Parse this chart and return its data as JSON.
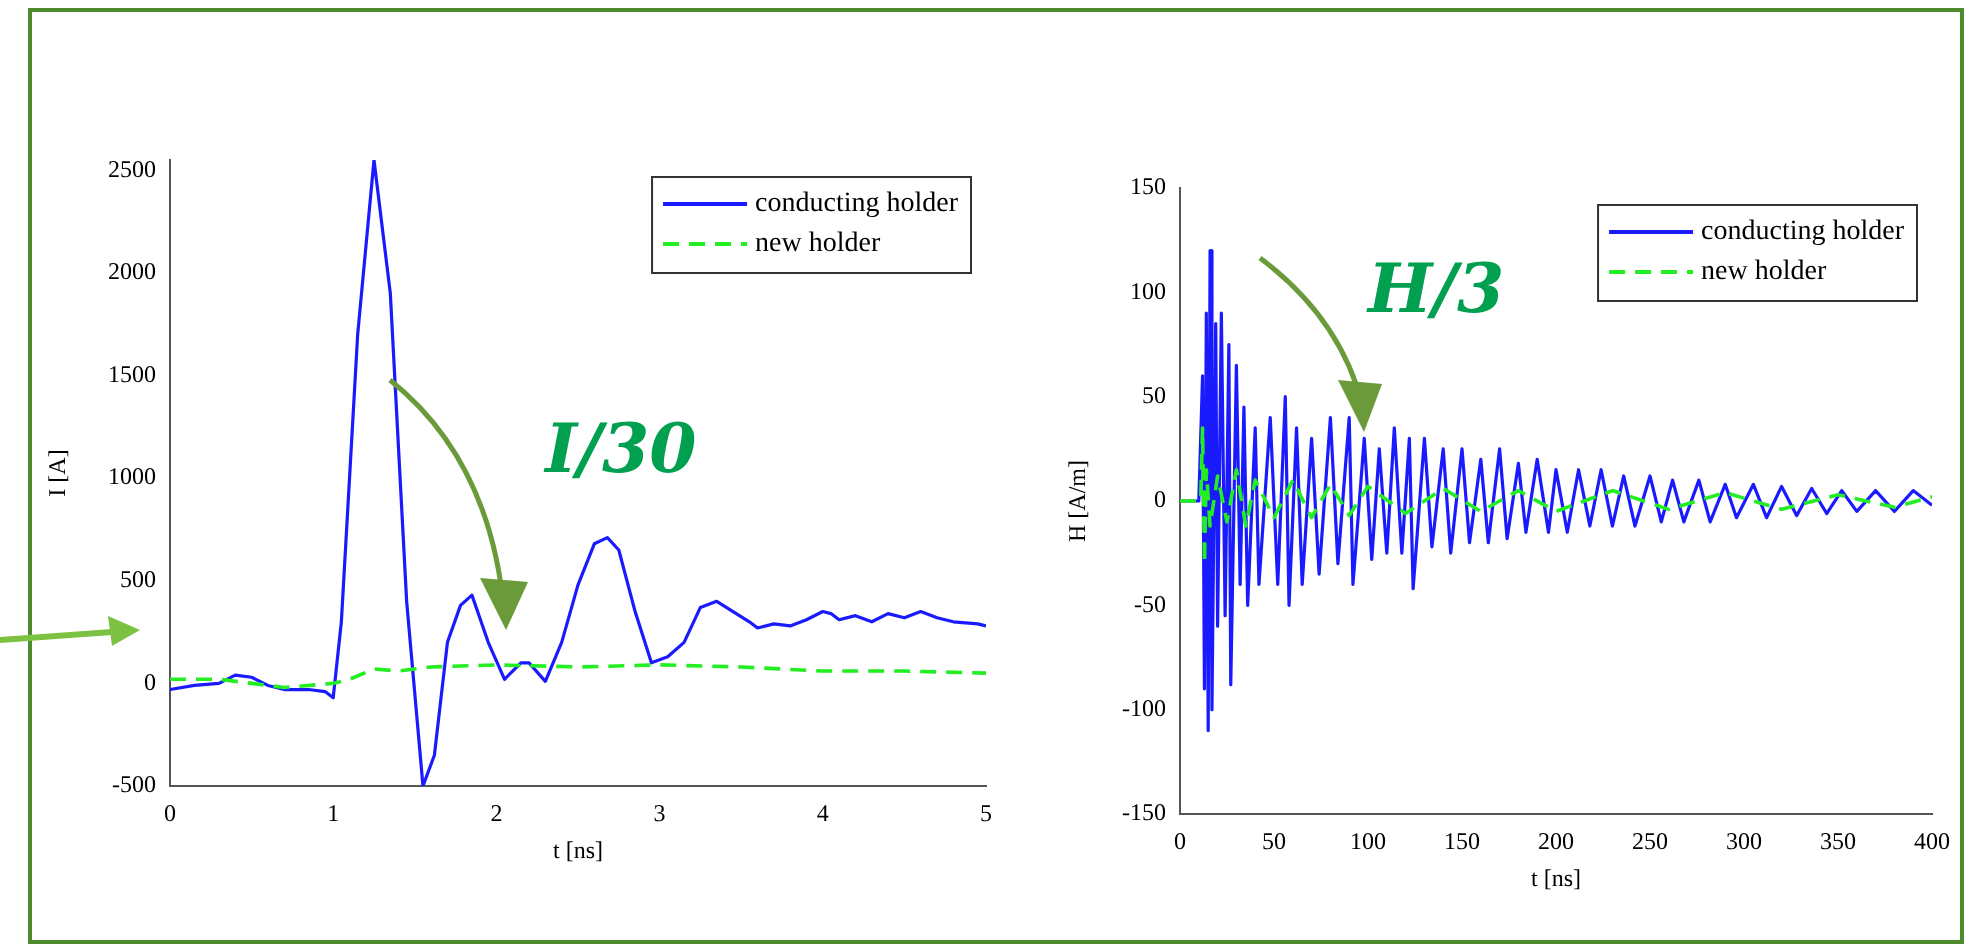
{
  "chart_data": [
    {
      "type": "line",
      "xlabel": "t [ns]",
      "ylabel": "I [A]",
      "xlim": [
        0,
        5
      ],
      "xticks": [
        0,
        1,
        2,
        3,
        4,
        5
      ],
      "ylim": [
        -500,
        2550
      ],
      "yticks": [
        -500,
        0,
        500,
        1000,
        1500,
        2000,
        2500
      ],
      "legend": "top right",
      "grid": false,
      "marker": "none",
      "annotations": [
        "I/30"
      ],
      "series": [
        {
          "name": "conducting holder",
          "color": "#1a1aff",
          "line_style": "solid",
          "x": [
            0,
            0.15,
            0.3,
            0.4,
            0.5,
            0.6,
            0.7,
            0.85,
            0.95,
            1.0,
            1.05,
            1.15,
            1.25,
            1.35,
            1.45,
            1.55,
            1.62,
            1.7,
            1.78,
            1.85,
            1.95,
            2.05,
            2.15,
            2.2,
            2.3,
            2.4,
            2.5,
            2.6,
            2.68,
            2.75,
            2.85,
            2.95,
            3.05,
            3.15,
            3.25,
            3.35,
            3.45,
            3.55,
            3.6,
            3.7,
            3.8,
            3.9,
            4.0,
            4.05,
            4.1,
            4.2,
            4.3,
            4.4,
            4.5,
            4.6,
            4.7,
            4.8,
            4.95,
            5
          ],
          "values": [
            -30,
            -10,
            0,
            40,
            30,
            -10,
            -30,
            -30,
            -40,
            -70,
            300,
            1700,
            2550,
            1900,
            400,
            -500,
            -350,
            200,
            380,
            430,
            200,
            20,
            100,
            100,
            10,
            200,
            480,
            680,
            710,
            650,
            350,
            100,
            130,
            200,
            370,
            400,
            350,
            300,
            270,
            290,
            280,
            310,
            350,
            340,
            310,
            330,
            300,
            340,
            320,
            350,
            320,
            300,
            290,
            280
          ]
        },
        {
          "name": "new holder",
          "color": "#22ee22",
          "line_style": "dashed",
          "x": [
            0,
            0.3,
            0.5,
            0.7,
            1.0,
            1.1,
            1.25,
            1.4,
            1.6,
            2,
            2.5,
            3,
            3.5,
            4,
            4.5,
            5
          ],
          "values": [
            20,
            20,
            0,
            -20,
            0,
            20,
            70,
            60,
            80,
            90,
            80,
            90,
            80,
            60,
            60,
            50
          ]
        }
      ]
    },
    {
      "type": "line",
      "xlabel": "t [ns]",
      "ylabel": "H [A/m]",
      "xlim": [
        0,
        400
      ],
      "xticks": [
        0,
        50,
        100,
        150,
        200,
        250,
        300,
        350,
        400
      ],
      "ylim": [
        -150,
        150
      ],
      "yticks": [
        -150,
        -100,
        -50,
        0,
        50,
        100,
        150
      ],
      "legend": "top right",
      "grid": false,
      "marker": "none",
      "annotations": [
        "H/3"
      ],
      "series": [
        {
          "name": "conducting holder",
          "color": "#1a1aff",
          "line_style": "solid",
          "x": [
            0,
            10,
            12,
            13,
            14,
            15,
            16,
            17,
            19,
            20,
            22,
            24,
            26,
            27,
            30,
            32,
            34,
            36,
            40,
            42,
            48,
            52,
            56,
            58,
            62,
            65,
            70,
            74,
            80,
            84,
            90,
            92,
            98,
            102,
            106,
            110,
            114,
            118,
            122,
            124,
            130,
            134,
            140,
            144,
            150,
            154,
            160,
            164,
            170,
            174,
            180,
            184,
            190,
            196,
            200,
            206,
            212,
            218,
            224,
            230,
            236,
            242,
            250,
            256,
            262,
            268,
            276,
            282,
            290,
            296,
            305,
            312,
            320,
            328,
            336,
            344,
            352,
            360,
            370,
            380,
            390,
            400
          ],
          "values": [
            0,
            0,
            60,
            -90,
            90,
            -110,
            120,
            -100,
            85,
            -60,
            90,
            -55,
            75,
            -88,
            65,
            -40,
            45,
            -50,
            35,
            -40,
            40,
            -40,
            50,
            -50,
            35,
            -40,
            30,
            -35,
            40,
            -30,
            40,
            -40,
            30,
            -28,
            25,
            -25,
            35,
            -25,
            30,
            -42,
            30,
            -22,
            25,
            -25,
            25,
            -20,
            20,
            -20,
            25,
            -18,
            18,
            -15,
            20,
            -15,
            15,
            -15,
            15,
            -12,
            15,
            -12,
            12,
            -12,
            12,
            -10,
            10,
            -10,
            10,
            -10,
            8,
            -8,
            8,
            -8,
            7,
            -7,
            6,
            -6,
            5,
            -5,
            5,
            -5,
            5,
            -2
          ]
        },
        {
          "name": "new holder",
          "color": "#22ee22",
          "line_style": "dashed",
          "x": [
            0,
            11,
            12,
            13,
            14,
            16,
            20,
            25,
            30,
            35,
            40,
            50,
            60,
            70,
            80,
            90,
            100,
            120,
            140,
            160,
            180,
            200,
            230,
            260,
            290,
            320,
            350,
            380,
            400
          ],
          "values": [
            0,
            0,
            35,
            -30,
            15,
            -12,
            12,
            -10,
            15,
            -12,
            10,
            -8,
            10,
            -8,
            8,
            -7,
            7,
            -6,
            6,
            -5,
            5,
            -5,
            5,
            -4,
            4,
            -4,
            3,
            -3,
            2
          ]
        }
      ]
    }
  ]
}
